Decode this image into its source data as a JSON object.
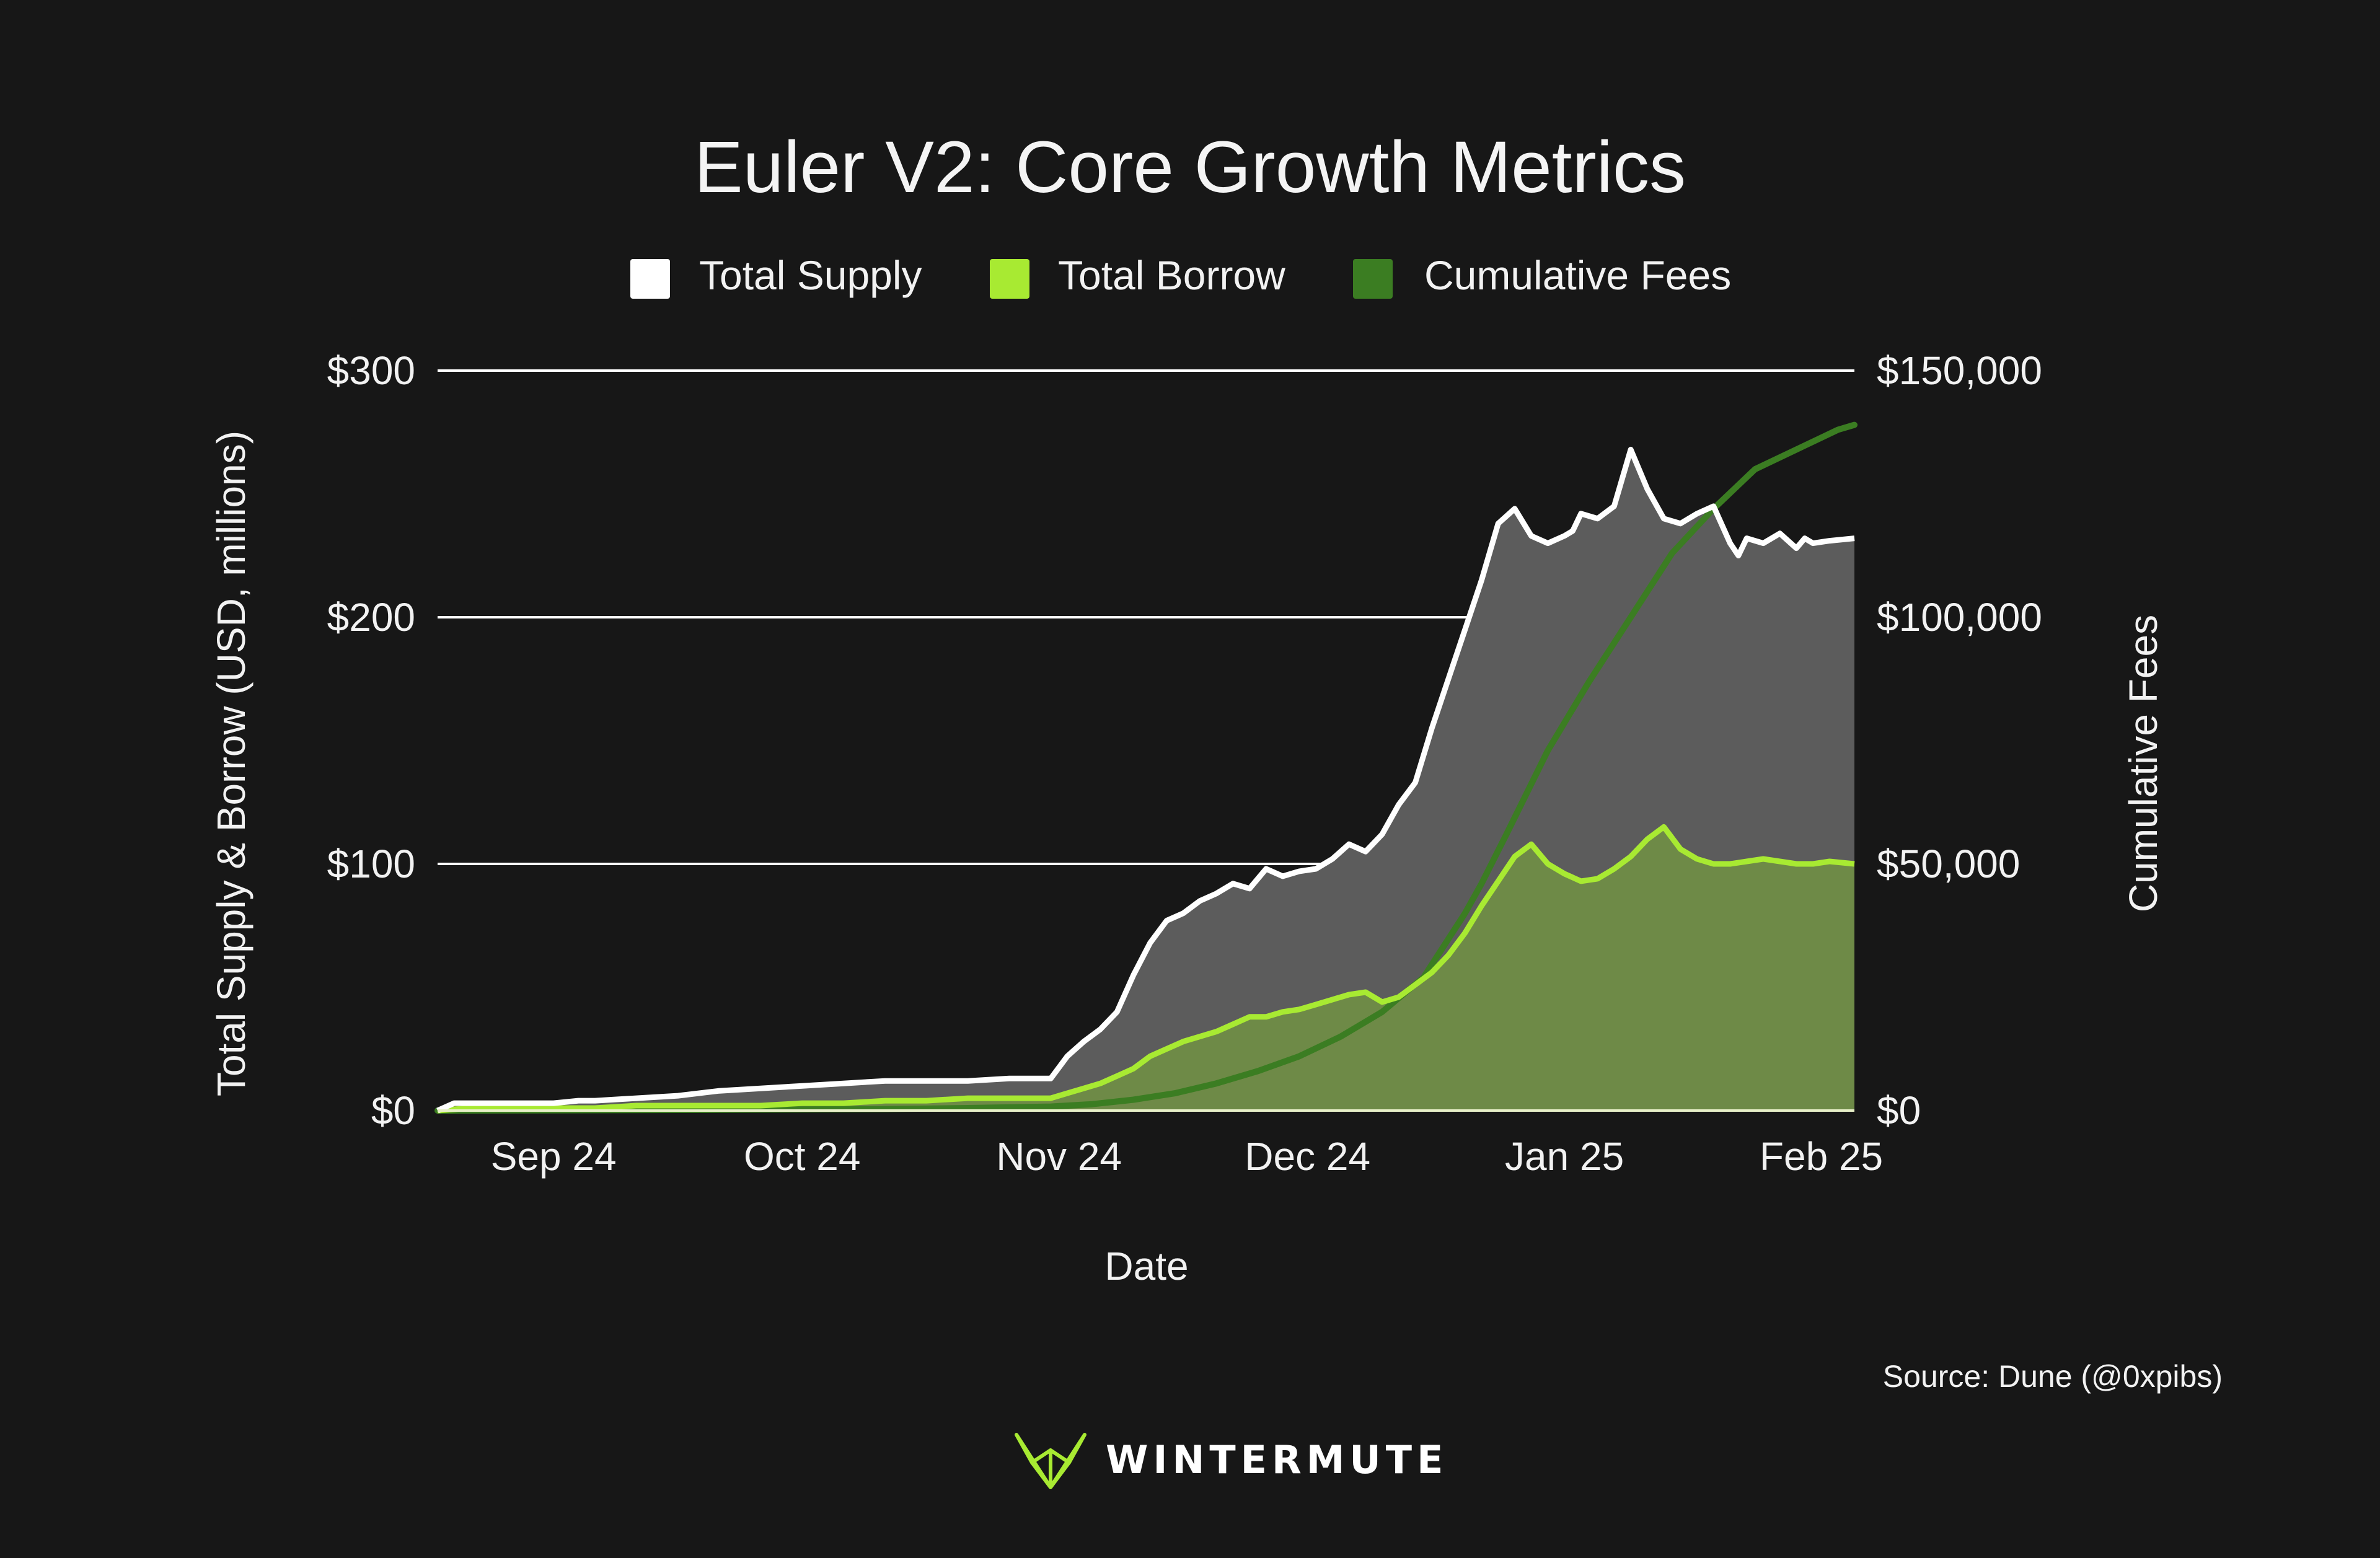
{
  "colors": {
    "background": "#171717",
    "supply": "#ffffff",
    "supply_fill": "#5c5c5c",
    "borrow": "#a8ea32",
    "borrow_fill": "#6e8a47",
    "fees": "#3b7d22",
    "grid": "#ffffff",
    "logo": "#a8ea32"
  },
  "source": "Source: Dune (@0xpibs)",
  "brand": "WINTERMUTE",
  "chart_data": {
    "type": "area",
    "title": "Euler V2: Core Growth Metrics",
    "xlabel": "Date",
    "ylabel": "Total Supply & Borrow (USD, millions)",
    "y2label": "Cumulative Fees",
    "legend_position": "top-center",
    "grid": true,
    "ylim": [
      0,
      300
    ],
    "y2lim": [
      0,
      150000
    ],
    "yticks": [
      0,
      100,
      200,
      300
    ],
    "ytick_labels": [
      "$0",
      "$100",
      "$200",
      "$300"
    ],
    "y2ticks": [
      0,
      50000,
      100000,
      150000
    ],
    "y2tick_labels": [
      "$0",
      "$50,000",
      "$100,000",
      "$150,000"
    ],
    "xlim": [
      -14,
      157
    ],
    "xticks": [
      0,
      30,
      61,
      91,
      122,
      153
    ],
    "xtick_labels": [
      "Sep 24",
      "Oct 24",
      "Nov 24",
      "Dec 24",
      "Jan 25",
      "Feb 25"
    ],
    "series": [
      {
        "name": "Total Supply",
        "axis": "left",
        "x": [
          -14,
          -12,
          -10,
          -5,
          0,
          3,
          5,
          10,
          15,
          20,
          25,
          30,
          35,
          40,
          45,
          50,
          55,
          60,
          62,
          64,
          66,
          68,
          70,
          72,
          74,
          76,
          78,
          80,
          82,
          84,
          86,
          88,
          90,
          92,
          94,
          96,
          98,
          100,
          102,
          104,
          106,
          108,
          110,
          112,
          114,
          116,
          118,
          120,
          122,
          123,
          124,
          126,
          128,
          130,
          132,
          134,
          136,
          138,
          140,
          142,
          143,
          144,
          146,
          148,
          150,
          151,
          152,
          154,
          157
        ],
        "values": [
          0,
          3,
          3,
          3,
          3,
          4,
          4,
          5,
          6,
          8,
          9,
          10,
          11,
          12,
          12,
          12,
          13,
          13,
          22,
          28,
          33,
          40,
          55,
          68,
          77,
          80,
          85,
          88,
          92,
          90,
          98,
          95,
          97,
          98,
          102,
          108,
          105,
          112,
          124,
          133,
          155,
          175,
          195,
          215,
          238,
          244,
          233,
          230,
          233,
          235,
          242,
          240,
          245,
          268,
          252,
          240,
          238,
          242,
          245,
          230,
          225,
          232,
          230,
          234,
          228,
          232,
          230,
          231,
          232
        ]
      },
      {
        "name": "Total Borrow",
        "axis": "left",
        "x": [
          -14,
          -10,
          0,
          5,
          10,
          15,
          20,
          25,
          30,
          35,
          40,
          45,
          50,
          55,
          60,
          62,
          64,
          66,
          68,
          70,
          72,
          74,
          76,
          78,
          80,
          82,
          84,
          86,
          88,
          90,
          92,
          94,
          96,
          98,
          100,
          102,
          104,
          106,
          108,
          110,
          112,
          114,
          116,
          118,
          120,
          122,
          124,
          126,
          128,
          130,
          132,
          134,
          136,
          138,
          140,
          142,
          144,
          146,
          148,
          150,
          152,
          154,
          157
        ],
        "values": [
          0,
          1,
          1,
          1,
          2,
          2,
          2,
          2,
          3,
          3,
          4,
          4,
          5,
          5,
          5,
          7,
          9,
          11,
          14,
          17,
          22,
          25,
          28,
          30,
          32,
          35,
          38,
          38,
          40,
          41,
          43,
          45,
          47,
          48,
          44,
          46,
          51,
          56,
          63,
          72,
          83,
          93,
          103,
          108,
          100,
          96,
          93,
          94,
          98,
          103,
          110,
          115,
          106,
          102,
          100,
          100,
          101,
          102,
          101,
          100,
          100,
          101,
          100
        ]
      },
      {
        "name": "Cumulative Fees",
        "axis": "right",
        "x": [
          -14,
          0,
          20,
          40,
          50,
          60,
          65,
          70,
          75,
          80,
          85,
          90,
          95,
          100,
          105,
          110,
          112,
          115,
          120,
          125,
          130,
          135,
          140,
          145,
          150,
          155,
          157
        ],
        "values": [
          0,
          50,
          150,
          300,
          500,
          800,
          1300,
          2200,
          3500,
          5500,
          8000,
          11000,
          15000,
          20000,
          27000,
          40000,
          46000,
          56000,
          73000,
          87000,
          100000,
          113000,
          122000,
          130000,
          134000,
          138000,
          139000
        ]
      }
    ]
  }
}
